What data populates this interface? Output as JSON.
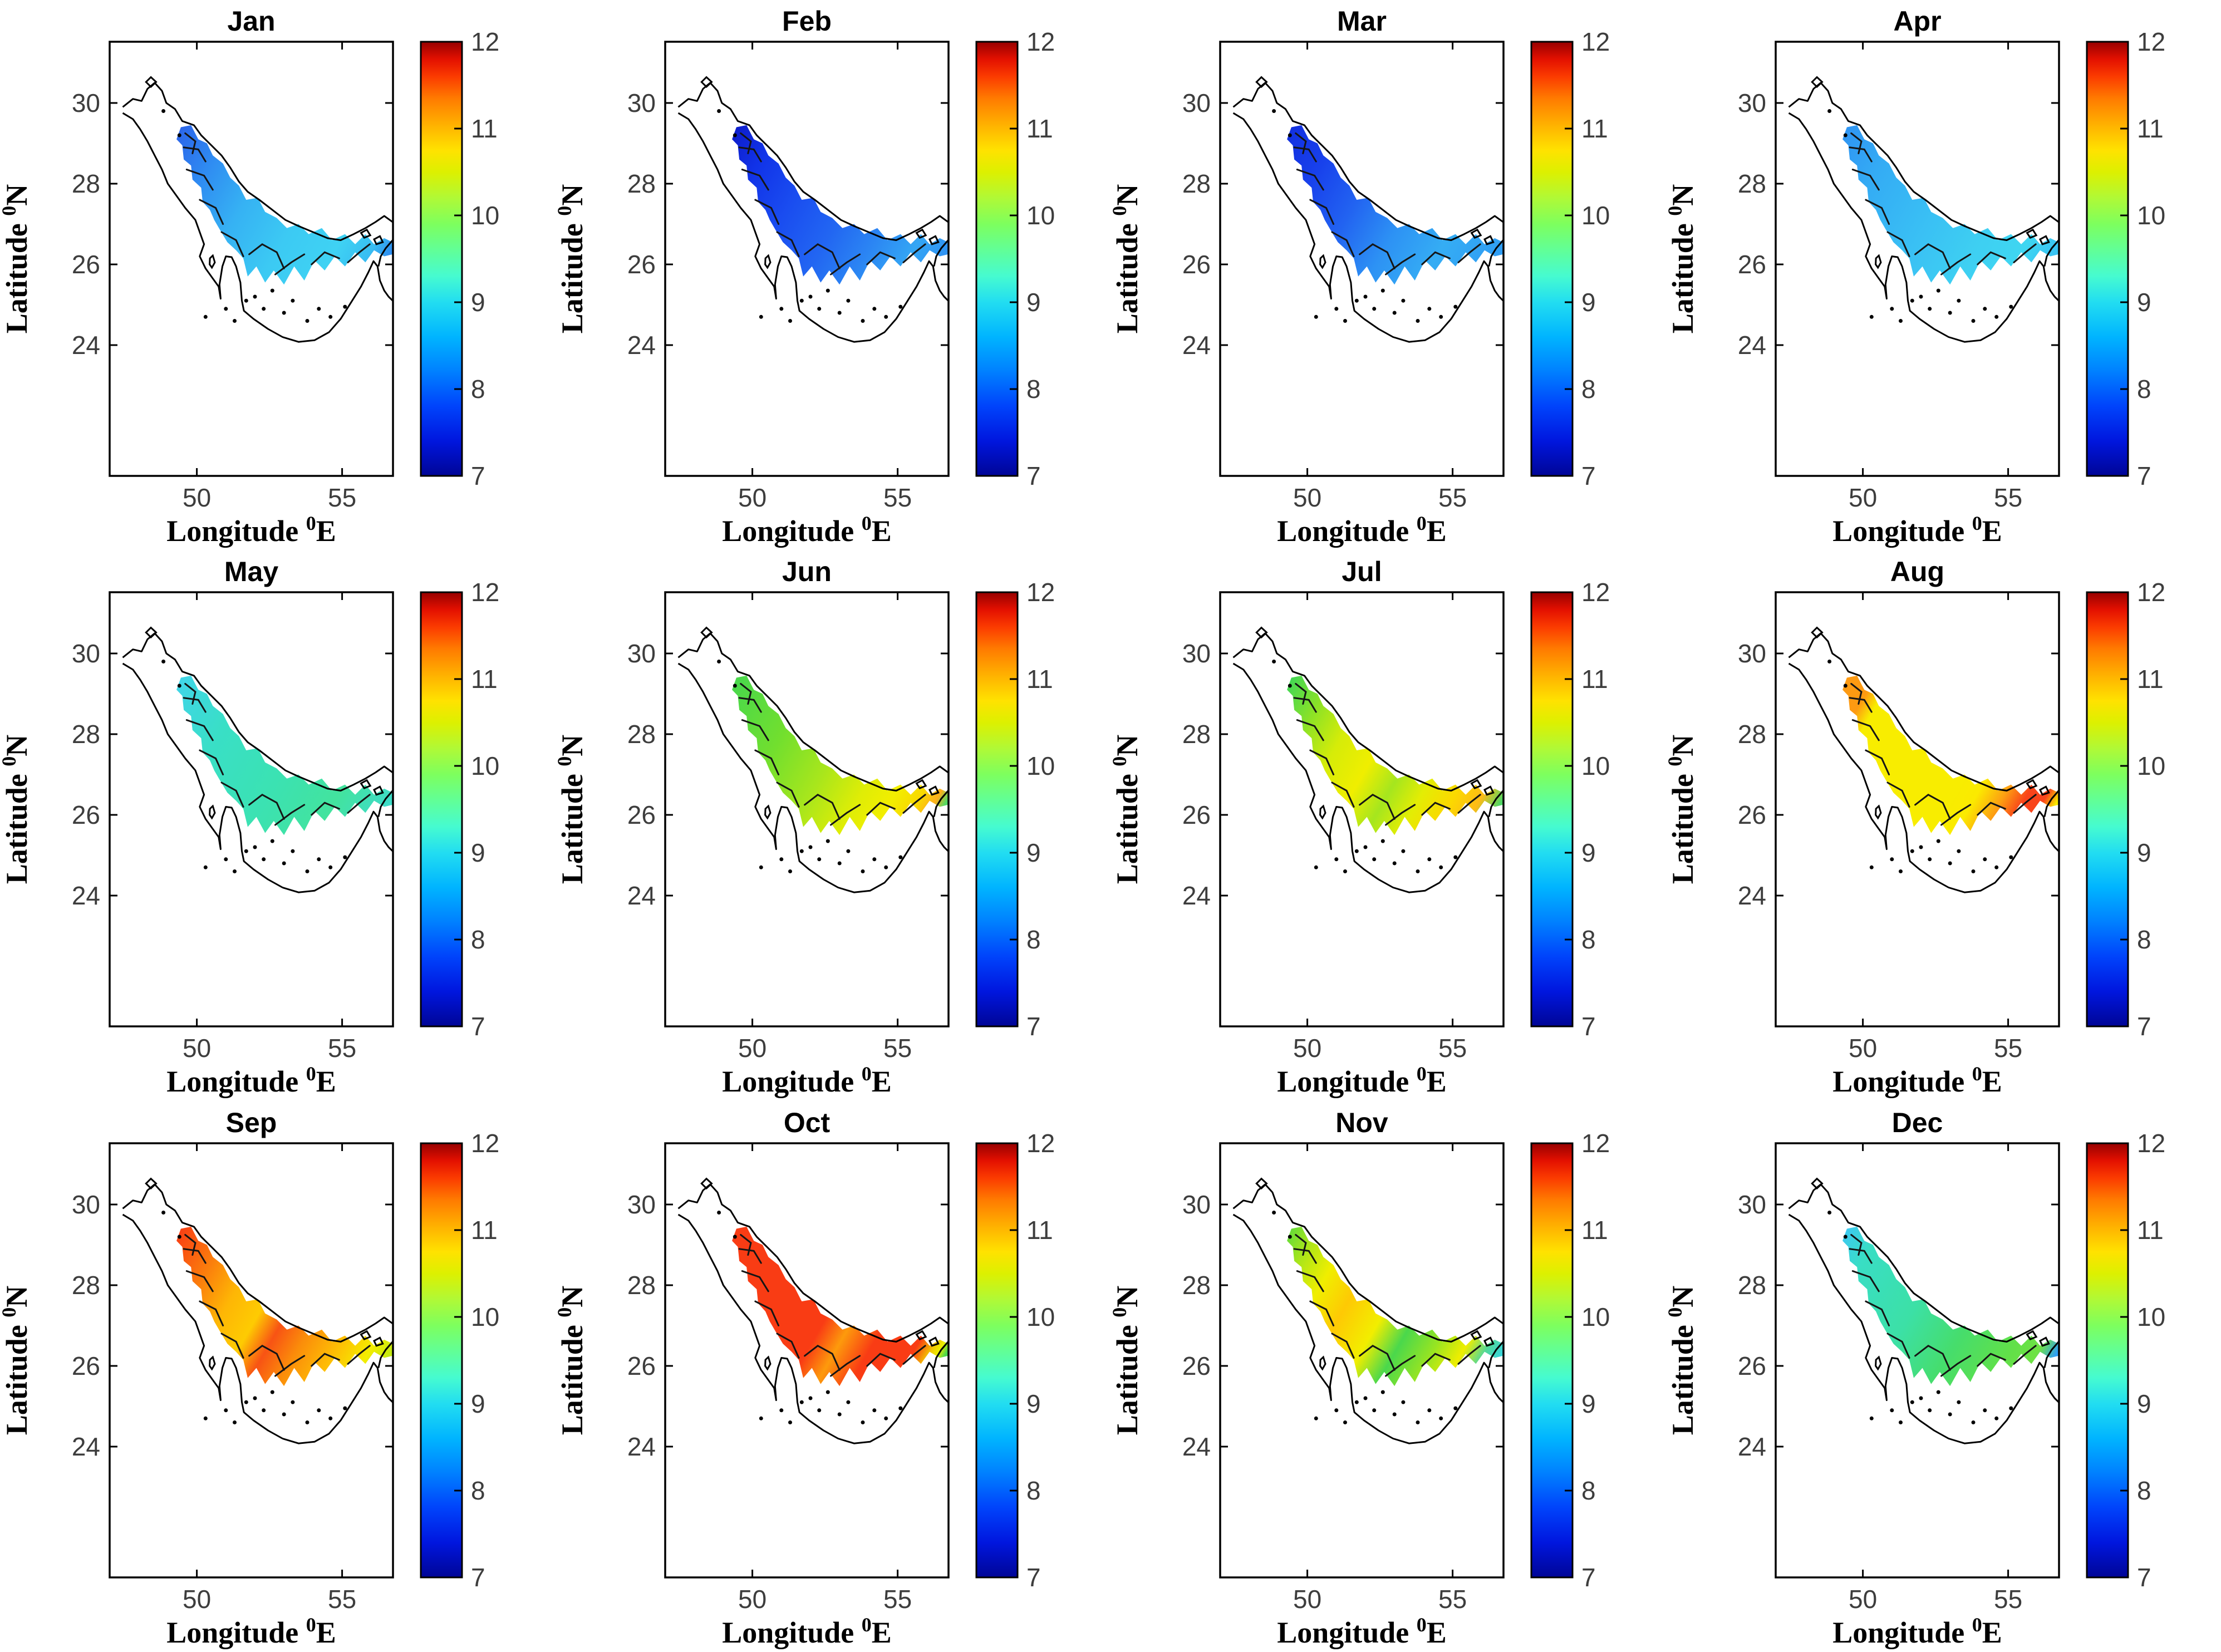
{
  "figure": {
    "months": [
      {
        "label": "Jan",
        "fill_stops": [
          [
            0,
            "#2B66EA"
          ],
          [
            0.18,
            "#2F8CF2"
          ],
          [
            0.38,
            "#36B2F3"
          ],
          [
            0.6,
            "#3CCAF3"
          ],
          [
            0.8,
            "#3FD2F3"
          ],
          [
            0.93,
            "#38BDF2"
          ],
          [
            1,
            "#2F8FF0"
          ]
        ]
      },
      {
        "label": "Feb",
        "fill_stops": [
          [
            0,
            "#0E1ECC"
          ],
          [
            0.15,
            "#1133E8"
          ],
          [
            0.35,
            "#1A4DF0"
          ],
          [
            0.55,
            "#2266F2"
          ],
          [
            0.72,
            "#2B85F3"
          ],
          [
            0.88,
            "#34A6F4"
          ],
          [
            1,
            "#2F93F3"
          ]
        ]
      },
      {
        "label": "Mar",
        "fill_stops": [
          [
            0,
            "#1230E0"
          ],
          [
            0.18,
            "#1841EC"
          ],
          [
            0.38,
            "#2263F1"
          ],
          [
            0.58,
            "#2D92F4"
          ],
          [
            0.78,
            "#35ADF4"
          ],
          [
            1,
            "#2F9DF4"
          ]
        ]
      },
      {
        "label": "Apr",
        "fill_stops": [
          [
            0,
            "#2F95F3"
          ],
          [
            0.2,
            "#34ACF4"
          ],
          [
            0.45,
            "#39BEF4"
          ],
          [
            0.7,
            "#3ECFF2"
          ],
          [
            0.88,
            "#3FD6F1"
          ],
          [
            1,
            "#38C2F3"
          ]
        ]
      },
      {
        "label": "May",
        "fill_stops": [
          [
            0,
            "#40D5E8"
          ],
          [
            0.25,
            "#39DFC6"
          ],
          [
            0.55,
            "#3BE2B2"
          ],
          [
            0.8,
            "#43E39E"
          ],
          [
            1,
            "#3EDCC8"
          ]
        ]
      },
      {
        "label": "Jun",
        "fill_stops": [
          [
            0,
            "#48D84C"
          ],
          [
            0.28,
            "#72DF2E"
          ],
          [
            0.5,
            "#A8E61C"
          ],
          [
            0.68,
            "#DFED06"
          ],
          [
            0.8,
            "#F2EE00"
          ],
          [
            0.9,
            "#F9D800"
          ],
          [
            0.96,
            "#FDAF1C"
          ],
          [
            1,
            "#52D964"
          ]
        ]
      },
      {
        "label": "Jul",
        "fill_stops": [
          [
            0,
            "#42D754"
          ],
          [
            0.15,
            "#8CE226"
          ],
          [
            0.3,
            "#D6EC08"
          ],
          [
            0.45,
            "#F0EE00"
          ],
          [
            0.58,
            "#A5E61E"
          ],
          [
            0.7,
            "#E3ED04"
          ],
          [
            0.82,
            "#FBD900"
          ],
          [
            0.92,
            "#FEBB16"
          ],
          [
            1,
            "#4FD765"
          ]
        ]
      },
      {
        "label": "Aug",
        "fill_stops": [
          [
            0,
            "#FD9A12"
          ],
          [
            0.1,
            "#FD9A12"
          ],
          [
            0.16,
            "#F8ED00"
          ],
          [
            0.62,
            "#F8ED00"
          ],
          [
            0.7,
            "#FBEA00"
          ],
          [
            0.8,
            "#FD9E12"
          ],
          [
            0.88,
            "#F9441A"
          ],
          [
            0.95,
            "#F9441A"
          ],
          [
            1,
            "#F8E800"
          ]
        ]
      },
      {
        "label": "Sep",
        "fill_stops": [
          [
            0,
            "#F94014"
          ],
          [
            0.18,
            "#FB7F0C"
          ],
          [
            0.32,
            "#FEB605"
          ],
          [
            0.45,
            "#FECB02"
          ],
          [
            0.55,
            "#F85314"
          ],
          [
            0.66,
            "#FB8C0A"
          ],
          [
            0.8,
            "#FEBE04"
          ],
          [
            0.92,
            "#F4ED00"
          ],
          [
            1,
            "#C3E912"
          ]
        ]
      },
      {
        "label": "Oct",
        "fill_stops": [
          [
            0,
            "#F93C14"
          ],
          [
            0.5,
            "#F93C14"
          ],
          [
            0.6,
            "#FD9A0C"
          ],
          [
            0.72,
            "#F93C14"
          ],
          [
            0.88,
            "#F93C14"
          ],
          [
            0.94,
            "#F2C400"
          ],
          [
            0.97,
            "#EDEE00"
          ],
          [
            1,
            "#49D84C"
          ]
        ]
      },
      {
        "label": "Nov",
        "fill_stops": [
          [
            0,
            "#66DC38"
          ],
          [
            0.1,
            "#AEE618"
          ],
          [
            0.22,
            "#F0EE00"
          ],
          [
            0.35,
            "#FEC904"
          ],
          [
            0.5,
            "#F2EE00"
          ],
          [
            0.62,
            "#4AD84C"
          ],
          [
            0.75,
            "#96E422"
          ],
          [
            0.86,
            "#EFEE00"
          ],
          [
            0.94,
            "#52D898"
          ],
          [
            1,
            "#3AD6D8"
          ]
        ]
      },
      {
        "label": "Dec",
        "fill_stops": [
          [
            0,
            "#3DCAF0"
          ],
          [
            0.12,
            "#39DEC4"
          ],
          [
            0.4,
            "#3CE0A6"
          ],
          [
            0.62,
            "#46DD6C"
          ],
          [
            0.82,
            "#60E04A"
          ],
          [
            0.93,
            "#6EE243"
          ],
          [
            1,
            "#2F9FF5"
          ]
        ]
      }
    ],
    "axes": {
      "lat_label": {
        "text": "Latitude ",
        "sup": "0",
        "suffix": "N"
      },
      "lon_label": {
        "text": "Longitude ",
        "sup": "0",
        "suffix": "E"
      },
      "lat_ticks": [
        "30",
        "28",
        "26",
        "24"
      ],
      "lon_ticks": [
        "50",
        "55"
      ]
    },
    "colorbar": {
      "tick_labels": [
        "12",
        "11",
        "10",
        "9",
        "8",
        "7"
      ],
      "min": 7,
      "max": 12,
      "jet_stops": [
        [
          0,
          "#000596"
        ],
        [
          0.08,
          "#0016DE"
        ],
        [
          0.16,
          "#0043FB"
        ],
        [
          0.24,
          "#0080FF"
        ],
        [
          0.32,
          "#00B4FF"
        ],
        [
          0.4,
          "#22DDF1"
        ],
        [
          0.46,
          "#46FBD0"
        ],
        [
          0.52,
          "#61FF97"
        ],
        [
          0.58,
          "#7DFF5E"
        ],
        [
          0.64,
          "#B0F936"
        ],
        [
          0.7,
          "#DDF000"
        ],
        [
          0.75,
          "#FFE200"
        ],
        [
          0.81,
          "#FFB000"
        ],
        [
          0.87,
          "#FF7A00"
        ],
        [
          0.92,
          "#FB3B00"
        ],
        [
          0.96,
          "#E31000"
        ],
        [
          1,
          "#970000"
        ]
      ]
    },
    "style": {
      "tick_color": "#3d3d3d",
      "title_color": "#000000",
      "coast_color": "#000000",
      "contour_color": "#151515",
      "frame_color": "#000000",
      "background": "#ffffff"
    }
  },
  "chart_data": {
    "type": "heatmap",
    "subtype": "filled-contour-maps-grid",
    "layout": "3 rows x 4 columns, one panel per month",
    "region": "Persian Gulf / Arabian Gulf coastal waters",
    "xlabel": "Longitude 0E",
    "ylabel": "Latitude 0N",
    "x_ticks": [
      50,
      55
    ],
    "y_ticks": [
      24,
      26,
      28,
      30
    ],
    "colorbar": {
      "range": [
        7,
        12
      ],
      "ticks": [
        7,
        8,
        9,
        10,
        11,
        12
      ],
      "colormap": "jet",
      "position": "right of each panel"
    },
    "months": [
      {
        "label": "Jan",
        "value_min": 7.9,
        "value_max": 8.7,
        "pattern": "lowest (blue) in northwest basin, cyan ~8.5 toward southeast"
      },
      {
        "label": "Feb",
        "value_min": 7.1,
        "value_max": 8.3,
        "pattern": "deep blue minimum in northwest, lighter blue southeast"
      },
      {
        "label": "Mar",
        "value_min": 7.4,
        "value_max": 8.4,
        "pattern": "dark blue northwest, sky blue southeast"
      },
      {
        "label": "Apr",
        "value_min": 8.1,
        "value_max": 8.7,
        "pattern": "fairly uniform light blue, slightly higher southeast"
      },
      {
        "label": "May",
        "value_min": 8.8,
        "value_max": 9.3,
        "pattern": "uniform cyan-turquoise, slightly greener southeast"
      },
      {
        "label": "Jun",
        "value_min": 9.4,
        "value_max": 10.7,
        "pattern": "green northwest increasing to yellow and small orange maximum in southeast"
      },
      {
        "label": "Jul",
        "value_min": 9.4,
        "value_max": 10.7,
        "pattern": "green/yellow-green northwest, yellow band, orange-yellow southeast"
      },
      {
        "label": "Aug",
        "value_min": 10.0,
        "value_max": 11.3,
        "pattern": "yellow band with orange patch northwest and orange-red maximum near Strait of Hormuz"
      },
      {
        "label": "Sep",
        "value_min": 10.4,
        "value_max": 11.5,
        "pattern": "red-orange maximum northwest and mid-gulf, orange southeast, yellow at eastern tip"
      },
      {
        "label": "Oct",
        "value_min": 9.5,
        "value_max": 11.5,
        "pattern": "nearly uniform red ~11.3 with orange patch mid-coast and green/yellow at far east"
      },
      {
        "label": "Nov",
        "value_min": 8.9,
        "value_max": 10.4,
        "pattern": "yellow-green with orange-yellow patch west, green patch southeast, cyan at far east"
      },
      {
        "label": "Dec",
        "value_min": 8.3,
        "value_max": 9.7,
        "pattern": "turquoise northwest, green mid-gulf, light green southeast, blue at far east"
      }
    ],
    "notes": "Values estimated from jet colorbar scale 7-12 (units not shown in figure). Each panel shows the same coastline outline with a diagonal NW-SE data band over gulf waters and black contour lines."
  }
}
